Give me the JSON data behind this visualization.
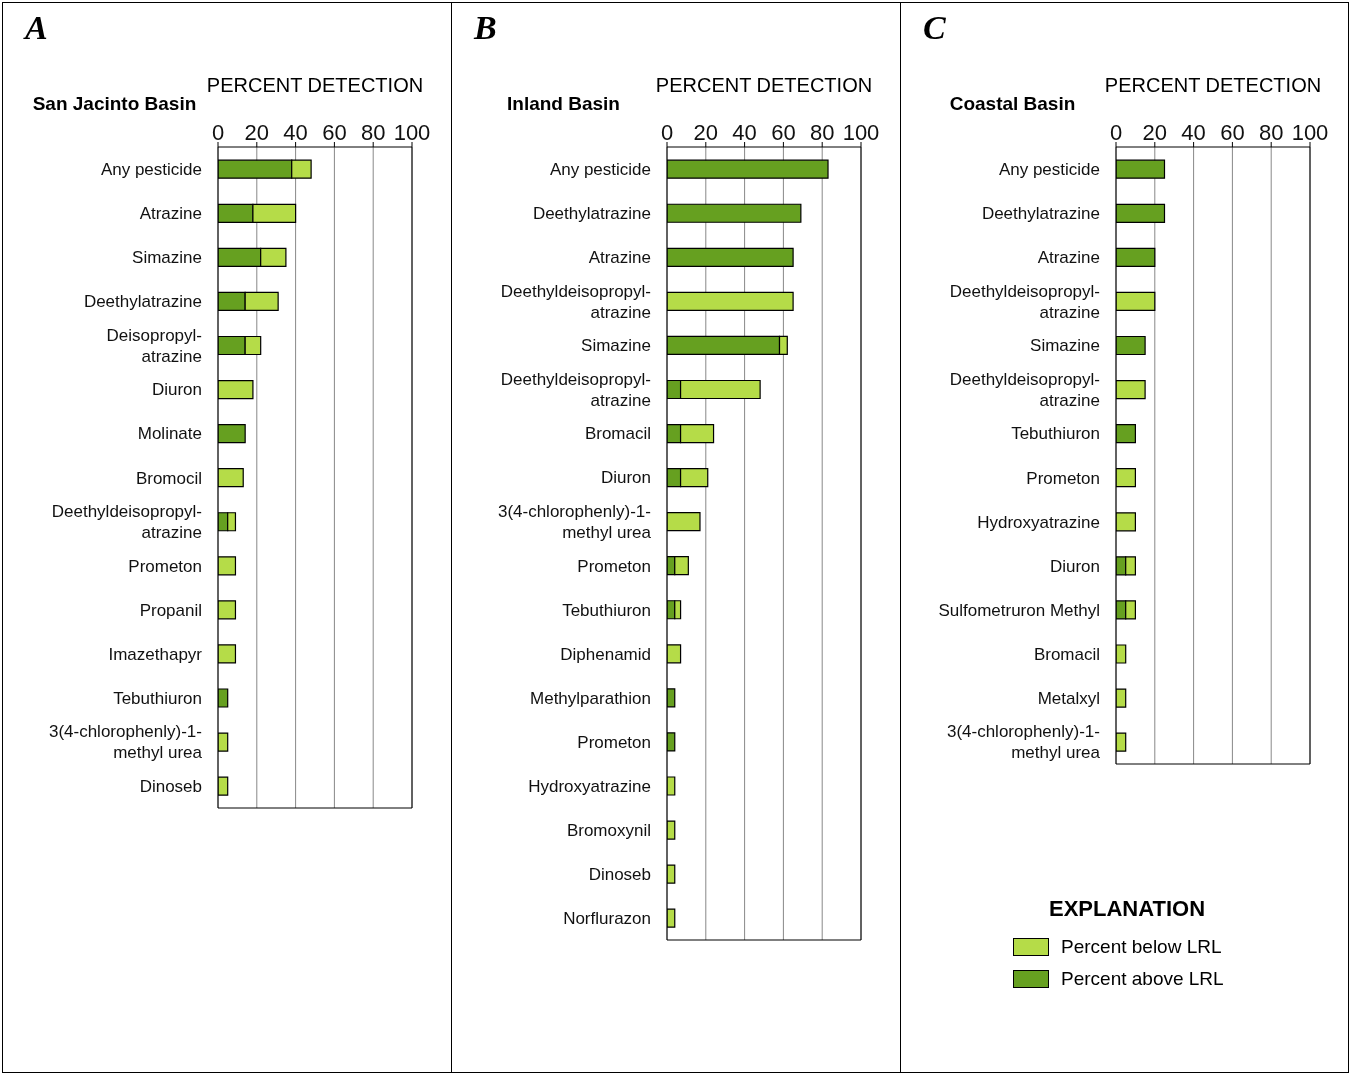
{
  "chart_data": [
    {
      "type": "bar",
      "title": "A",
      "subtitle": "San Jacinto Basin",
      "xlabel": "PERCENT DETECTION",
      "orientation": "horizontal",
      "stacked": true,
      "grid": "x",
      "xlim": [
        0,
        100
      ],
      "xticks": [
        0,
        20,
        40,
        60,
        80,
        100
      ],
      "categories": [
        "Any pesticide",
        "Atrazine",
        "Simazine",
        "Deethylatrazine",
        "Deisopropyl-\natrazine",
        "Diuron",
        "Molinate",
        "Bromocil",
        "Deethyldeisopropyl-\natrazine",
        "Prometon",
        "Propanil",
        "Imazethapyr",
        "Tebuthiuron",
        "3(4-chlorophenly)-1-\nmethyl urea",
        "Dinoseb"
      ],
      "series": [
        {
          "color": "#66a020",
          "values": [
            38,
            18,
            22,
            14,
            14,
            null,
            14,
            null,
            5,
            null,
            null,
            null,
            5,
            null,
            null
          ]
        },
        {
          "color": "#b5dc48",
          "values": [
            10,
            22,
            13,
            17,
            8,
            18,
            null,
            13,
            4,
            9,
            9,
            9,
            null,
            5,
            5
          ]
        }
      ]
    },
    {
      "type": "bar",
      "title": "B",
      "subtitle": "Inland Basin",
      "xlabel": "PERCENT DETECTION",
      "orientation": "horizontal",
      "stacked": true,
      "grid": "x",
      "xlim": [
        0,
        100
      ],
      "xticks": [
        0,
        20,
        40,
        60,
        80,
        100
      ],
      "categories": [
        "Any pesticide",
        "Deethylatrazine",
        "Atrazine",
        "Deethyldeisopropyl-\natrazine",
        "Simazine",
        "Deethyldeisopropyl-\natrazine",
        "Bromacil",
        "Diuron",
        "3(4-chlorophenly)-1-\nmethyl urea",
        "Prometon",
        "Tebuthiuron",
        "Diphenamid",
        "Methylparathion",
        "Prometon",
        "Hydroxyatrazine",
        "Bromoxynil",
        "Dinoseb",
        "Norflurazon"
      ],
      "series": [
        {
          "color": "#66a020",
          "values": [
            83,
            69,
            65,
            null,
            58,
            7,
            7,
            7,
            null,
            4,
            4,
            null,
            4,
            4,
            null,
            null,
            null,
            null
          ]
        },
        {
          "color": "#b5dc48",
          "values": [
            null,
            null,
            null,
            65,
            4,
            41,
            17,
            14,
            17,
            7,
            3,
            7,
            null,
            null,
            4,
            4,
            4,
            4
          ]
        }
      ]
    },
    {
      "type": "bar",
      "title": "C",
      "subtitle": "Coastal Basin",
      "xlabel": "PERCENT DETECTION",
      "orientation": "horizontal",
      "stacked": true,
      "grid": "x",
      "xlim": [
        0,
        100
      ],
      "xticks": [
        0,
        20,
        40,
        60,
        80,
        100
      ],
      "legend": "bottom",
      "legend_title": "EXPLANATION",
      "categories": [
        "Any pesticide",
        "Deethylatrazine",
        "Atrazine",
        "Deethyldeisopropyl-\natrazine",
        "Simazine",
        "Deethyldeisopropyl-\natrazine",
        "Tebuthiuron",
        "Prometon",
        "Hydroxyatrazine",
        "Diuron",
        "Sulfometruron Methyl",
        "Bromacil",
        "Metalxyl",
        "3(4-chlorophenly)-1-\nmethyl urea"
      ],
      "series": [
        {
          "name": "Percent above LRL",
          "color": "#66a020",
          "values": [
            25,
            25,
            20,
            null,
            15,
            null,
            10,
            null,
            null,
            5,
            5,
            null,
            null,
            null
          ]
        },
        {
          "name": "Percent below LRL",
          "color": "#b5dc48",
          "values": [
            null,
            null,
            null,
            20,
            null,
            15,
            null,
            10,
            10,
            5,
            5,
            5,
            5,
            5
          ]
        }
      ]
    }
  ]
}
